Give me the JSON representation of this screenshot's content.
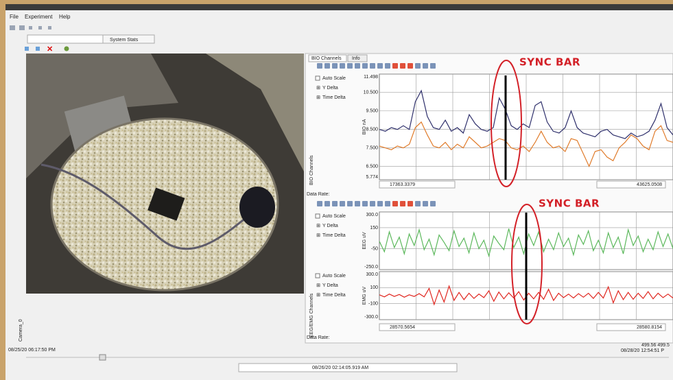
{
  "window": {
    "menu": [
      "File",
      "Experiment",
      "Help"
    ],
    "tab": "System Stats"
  },
  "video": {
    "label": "Camera_0",
    "start_time": "08/25/20  06:17:50 PM",
    "current_time": "08/26/20  02:14:05.919 AM"
  },
  "bio_panel": {
    "tabs": [
      "BIO Channels",
      "Info"
    ],
    "side_label": "BIO Channels",
    "controls": [
      "Auto Scale",
      "Y Delta",
      "Time Delta"
    ],
    "plot": {
      "y_label": "BIO nA",
      "ylim": [
        5.774,
        11.498
      ],
      "yticks": [
        11.498,
        {
          "value": 10.5,
          "label": "10.500"
        },
        {
          "value": 9.5,
          "label": "9.500"
        },
        {
          "value": 8.5,
          "label": "8.500"
        },
        {
          "value": 7.5,
          "label": "7.500"
        },
        {
          "value": 6.5,
          "label": "6.500"
        },
        5.774
      ],
      "series": [
        {
          "color": "#2e2f6b",
          "values": [
            8.5,
            8.4,
            8.6,
            8.5,
            8.7,
            8.5,
            10.0,
            10.6,
            9.2,
            8.6,
            8.5,
            9.0,
            8.4,
            8.6,
            8.3,
            9.3,
            8.8,
            8.5,
            8.4,
            8.6,
            10.2,
            9.6,
            8.7,
            8.5,
            8.8,
            8.6,
            9.8,
            10.0,
            8.9,
            8.4,
            8.3,
            8.6,
            9.5,
            8.6,
            8.3,
            8.2,
            8.1,
            8.4,
            8.5,
            8.2,
            8.1,
            8.0,
            8.3,
            8.1,
            8.2,
            8.4,
            9.0,
            9.9,
            8.6,
            8.2
          ]
        },
        {
          "color": "#e07b2a",
          "values": [
            7.6,
            7.5,
            7.4,
            7.6,
            7.5,
            7.7,
            8.6,
            8.9,
            8.2,
            7.6,
            7.5,
            7.8,
            7.4,
            7.7,
            7.5,
            8.1,
            7.8,
            7.5,
            7.6,
            7.8,
            8.0,
            7.9,
            7.5,
            7.4,
            7.6,
            7.3,
            7.8,
            8.4,
            7.8,
            7.5,
            7.6,
            7.3,
            8.0,
            7.9,
            7.2,
            6.5,
            7.3,
            7.4,
            7.0,
            6.8,
            7.5,
            7.8,
            8.2,
            8.0,
            7.6,
            7.4,
            8.4,
            8.7,
            7.9,
            7.8
          ]
        }
      ]
    },
    "start": "17363.3379",
    "end": "43625.0508",
    "data_rate": "Data Rate:"
  },
  "eeg_panel": {
    "side_label": "EEG/EMG Channels",
    "plots": [
      {
        "y_label": "EEG uV",
        "ylim": [
          -250,
          300
        ],
        "yticks": [
          {
            "value": 300,
            "label": "300.0"
          },
          150,
          -50,
          {
            "value": -250,
            "label": "-250.0"
          }
        ],
        "series": [
          {
            "color": "#5cb85c",
            "values": [
              20,
              -80,
              110,
              -40,
              60,
              -100,
              90,
              -20,
              130,
              -60,
              40,
              -110,
              80,
              10,
              -70,
              120,
              -30,
              50,
              -90,
              100,
              -50,
              30,
              -120,
              70,
              0,
              -60,
              140,
              -40,
              60,
              -100,
              90,
              -20,
              110,
              -80,
              40,
              -60,
              100,
              -30,
              50,
              -110,
              80,
              -10,
              120,
              -70,
              30,
              -90,
              100,
              -40,
              60,
              -100,
              130,
              -20,
              70,
              -80,
              40,
              -60,
              110,
              -30,
              90,
              -50
            ]
          }
        ]
      },
      {
        "y_label": "EMG uV",
        "ylim": [
          -300,
          300
        ],
        "yticks": [
          {
            "value": 300,
            "label": "300.0"
          },
          100,
          -100,
          {
            "value": -300,
            "label": "-300.0"
          }
        ],
        "series": [
          {
            "color": "#e0261f",
            "values": [
              10,
              -15,
              20,
              -10,
              15,
              -20,
              10,
              -10,
              25,
              -15,
              90,
              -110,
              70,
              -80,
              120,
              -60,
              40,
              -50,
              30,
              -35,
              20,
              -25,
              60,
              -70,
              45,
              -40,
              35,
              -30,
              50,
              -55,
              30,
              -40,
              40,
              -45,
              80,
              -60,
              30,
              -25,
              20,
              -30,
              25,
              -20,
              30,
              -35,
              40,
              -30,
              110,
              -90,
              60,
              -50,
              40,
              -45,
              30,
              -35,
              50,
              -40,
              30,
              -25,
              20,
              -30
            ]
          }
        ]
      }
    ],
    "start": "28570.5654",
    "end": "28580.8154",
    "data_rate": "Data Rate:",
    "rates": "499.56  499.5",
    "end_time": "08/28/20   12:54:51 P"
  },
  "annotations": [
    "SYNC BAR",
    "SYNC BAR"
  ]
}
